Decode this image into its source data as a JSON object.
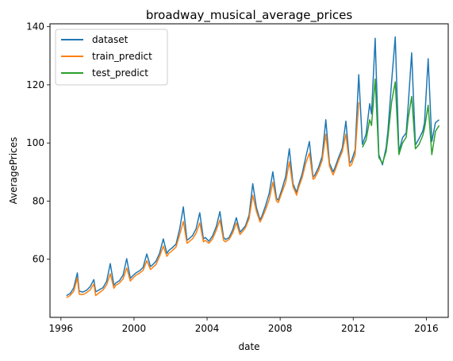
{
  "chart_data": {
    "type": "line",
    "title": "broadway_musical_average_prices",
    "xlabel": "date",
    "ylabel": "AveragePrices",
    "xlim": [
      1995.4,
      2017.2
    ],
    "ylim": [
      40,
      141
    ],
    "xticks": [
      1996,
      2000,
      2004,
      2008,
      2012,
      2016
    ],
    "xtick_labels": [
      "1996",
      "2000",
      "2004",
      "2008",
      "2012",
      "2016"
    ],
    "yticks": [
      60,
      80,
      100,
      120,
      140
    ],
    "ytick_labels": [
      "60",
      "80",
      "100",
      "120",
      "140"
    ],
    "legend_position": "upper-left",
    "grid": false,
    "series": [
      {
        "name": "dataset",
        "color": "#1f77b4",
        "x": [
          1996.3,
          1996.5,
          1996.7,
          1996.9,
          1997.0,
          1997.2,
          1997.4,
          1997.6,
          1997.8,
          1997.9,
          1998.1,
          1998.3,
          1998.5,
          1998.7,
          1998.9,
          1999.0,
          1999.2,
          1999.4,
          1999.6,
          1999.8,
          1999.9,
          2000.1,
          2000.3,
          2000.5,
          2000.7,
          2000.9,
          2001.0,
          2001.2,
          2001.4,
          2001.6,
          2001.8,
          2001.9,
          2002.1,
          2002.3,
          2002.5,
          2002.7,
          2002.9,
          2003.0,
          2003.2,
          2003.4,
          2003.6,
          2003.8,
          2003.9,
          2004.1,
          2004.3,
          2004.5,
          2004.7,
          2004.9,
          2005.0,
          2005.2,
          2005.4,
          2005.6,
          2005.8,
          2005.9,
          2006.1,
          2006.3,
          2006.5,
          2006.7,
          2006.9,
          2007.0,
          2007.2,
          2007.4,
          2007.6,
          2007.8,
          2007.9,
          2008.1,
          2008.3,
          2008.5,
          2008.7,
          2008.9,
          2009.0,
          2009.2,
          2009.4,
          2009.6,
          2009.8,
          2009.9,
          2010.1,
          2010.3,
          2010.5,
          2010.7,
          2010.9,
          2011.0,
          2011.2,
          2011.4,
          2011.6,
          2011.8,
          2011.9,
          2012.1,
          2012.3,
          2012.5,
          2012.7,
          2012.9,
          2013.0,
          2013.2,
          2013.4,
          2013.6,
          2013.8,
          2013.9,
          2014.1,
          2014.3,
          2014.5,
          2014.7,
          2014.9,
          2015.0,
          2015.2,
          2015.4,
          2015.6,
          2015.8,
          2015.9,
          2016.1,
          2016.3,
          2016.5,
          2016.7
        ],
        "values": [
          47.5,
          48.2,
          50.1,
          55.3,
          49.0,
          48.7,
          49.3,
          50.6,
          53.0,
          48.8,
          49.5,
          50.2,
          52.4,
          58.5,
          51.0,
          51.8,
          52.6,
          54.5,
          60.2,
          53.4,
          54.1,
          55.3,
          56.0,
          57.2,
          61.8,
          57.5,
          58.0,
          59.3,
          62.1,
          67.0,
          62.0,
          63.0,
          64.0,
          65.2,
          70.4,
          78.0,
          66.5,
          67.0,
          68.1,
          70.5,
          76.0,
          67.0,
          67.5,
          66.2,
          68.0,
          71.2,
          76.4,
          67.5,
          66.8,
          67.4,
          70.1,
          74.3,
          69.3,
          70.0,
          71.5,
          75.2,
          86.0,
          77.8,
          73.5,
          74.8,
          78.4,
          82.6,
          90.1,
          81.0,
          80.3,
          84.1,
          88.5,
          98.0,
          86.0,
          83.0,
          85.5,
          89.3,
          95.1,
          100.5,
          88.2,
          89.0,
          91.6,
          95.4,
          108.0,
          93.0,
          90.1,
          91.5,
          95.0,
          98.2,
          107.5,
          93.0,
          93.8,
          97.6,
          123.5,
          99.5,
          103.0,
          113.5,
          110.0,
          136.0,
          96.0,
          92.5,
          98.4,
          104.2,
          121.0,
          136.5,
          97.0,
          101.8,
          103.5,
          112.0,
          131.0,
          99.3,
          101.5,
          104.0,
          107.0,
          129.0,
          100.5,
          107.0,
          108.0
        ]
      },
      {
        "name": "train_predict",
        "color": "#ff7f0e",
        "x": [
          1996.3,
          1996.5,
          1996.7,
          1996.9,
          1997.0,
          1997.2,
          1997.4,
          1997.6,
          1997.8,
          1997.9,
          1998.1,
          1998.3,
          1998.5,
          1998.7,
          1998.9,
          1999.0,
          1999.2,
          1999.4,
          1999.6,
          1999.8,
          1999.9,
          2000.1,
          2000.3,
          2000.5,
          2000.7,
          2000.9,
          2001.0,
          2001.2,
          2001.4,
          2001.6,
          2001.8,
          2001.9,
          2002.1,
          2002.3,
          2002.5,
          2002.7,
          2002.9,
          2003.0,
          2003.2,
          2003.4,
          2003.6,
          2003.8,
          2003.9,
          2004.1,
          2004.3,
          2004.5,
          2004.7,
          2004.9,
          2005.0,
          2005.2,
          2005.4,
          2005.6,
          2005.8,
          2005.9,
          2006.1,
          2006.3,
          2006.5,
          2006.7,
          2006.9,
          2007.0,
          2007.2,
          2007.4,
          2007.6,
          2007.8,
          2007.9,
          2008.1,
          2008.3,
          2008.5,
          2008.7,
          2008.9,
          2009.0,
          2009.2,
          2009.4,
          2009.6,
          2009.8,
          2009.9,
          2010.1,
          2010.3,
          2010.5,
          2010.7,
          2010.9,
          2011.0,
          2011.2,
          2011.4,
          2011.6,
          2011.8,
          2011.9,
          2012.1,
          2012.3
        ],
        "values": [
          46.8,
          47.5,
          49.0,
          53.5,
          48.0,
          47.8,
          48.5,
          49.5,
          51.5,
          47.5,
          48.5,
          49.4,
          51.2,
          55.0,
          50.0,
          51.0,
          51.8,
          53.2,
          57.0,
          52.5,
          53.2,
          54.5,
          55.2,
          56.2,
          59.5,
          56.5,
          57.0,
          58.2,
          61.0,
          64.5,
          61.0,
          62.0,
          63.0,
          64.2,
          68.5,
          73.0,
          65.5,
          66.0,
          67.0,
          69.0,
          72.5,
          66.0,
          66.5,
          65.5,
          67.0,
          70.0,
          73.5,
          66.5,
          66.0,
          66.8,
          69.0,
          72.5,
          68.5,
          69.2,
          70.8,
          74.0,
          82.0,
          76.5,
          72.8,
          74.0,
          77.0,
          80.5,
          86.5,
          80.0,
          79.5,
          83.0,
          86.5,
          93.5,
          85.0,
          82.0,
          84.5,
          88.0,
          93.0,
          96.5,
          87.5,
          88.0,
          90.5,
          94.0,
          103.0,
          92.0,
          89.0,
          90.5,
          94.0,
          97.0,
          103.0,
          92.0,
          92.5,
          96.0,
          114.0
        ]
      },
      {
        "name": "test_predict",
        "color": "#2ca02c",
        "x": [
          2012.5,
          2012.7,
          2012.9,
          2013.0,
          2013.2,
          2013.4,
          2013.6,
          2013.8,
          2013.9,
          2014.1,
          2014.3,
          2014.5,
          2014.7,
          2014.9,
          2015.0,
          2015.2,
          2015.4,
          2015.6,
          2015.8,
          2015.9,
          2016.1,
          2016.3,
          2016.5,
          2016.7
        ],
        "values": [
          98.5,
          101.0,
          108.0,
          106.0,
          122.0,
          95.0,
          93.0,
          97.0,
          102.0,
          114.0,
          121.0,
          96.0,
          100.0,
          102.0,
          108.0,
          116.0,
          98.0,
          99.5,
          102.5,
          105.0,
          113.0,
          96.0,
          104.0,
          106.0
        ]
      }
    ]
  }
}
